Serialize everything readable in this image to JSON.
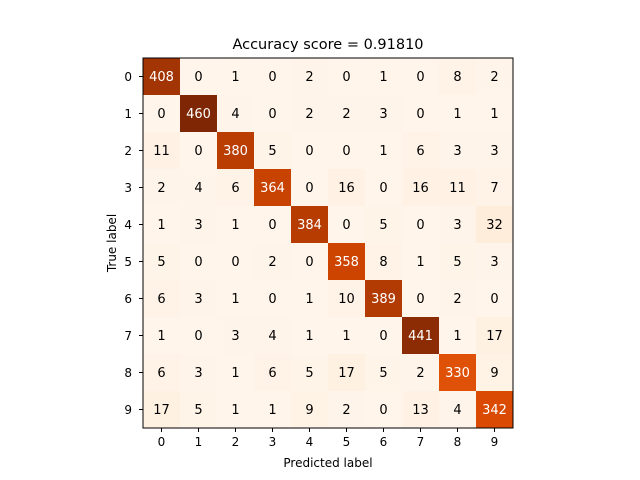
{
  "chart_data": {
    "type": "heatmap",
    "title": "Accuracy score = 0.91810",
    "xlabel": "Predicted label",
    "ylabel": "True label",
    "x_categories": [
      "0",
      "1",
      "2",
      "3",
      "4",
      "5",
      "6",
      "7",
      "8",
      "9"
    ],
    "y_categories": [
      "0",
      "1",
      "2",
      "3",
      "4",
      "5",
      "6",
      "7",
      "8",
      "9"
    ],
    "colormap": "Oranges-to-dark-brown",
    "colors": {
      "low": "#fff5eb",
      "mid": "#f16913",
      "high": "#7f2704"
    },
    "value_range": [
      0,
      460
    ],
    "values": [
      [
        408,
        0,
        1,
        0,
        2,
        0,
        1,
        0,
        8,
        2
      ],
      [
        0,
        460,
        4,
        0,
        2,
        2,
        3,
        0,
        1,
        1
      ],
      [
        11,
        0,
        380,
        5,
        0,
        0,
        1,
        6,
        3,
        3
      ],
      [
        2,
        4,
        6,
        364,
        0,
        16,
        0,
        16,
        11,
        7
      ],
      [
        1,
        3,
        1,
        0,
        384,
        0,
        5,
        0,
        3,
        32
      ],
      [
        5,
        0,
        0,
        2,
        0,
        358,
        8,
        1,
        5,
        3
      ],
      [
        6,
        3,
        1,
        0,
        1,
        10,
        389,
        0,
        2,
        0
      ],
      [
        1,
        0,
        3,
        4,
        1,
        1,
        0,
        441,
        1,
        17
      ],
      [
        6,
        3,
        1,
        6,
        5,
        17,
        5,
        2,
        330,
        9
      ],
      [
        17,
        5,
        1,
        1,
        9,
        2,
        0,
        13,
        4,
        342
      ]
    ]
  }
}
